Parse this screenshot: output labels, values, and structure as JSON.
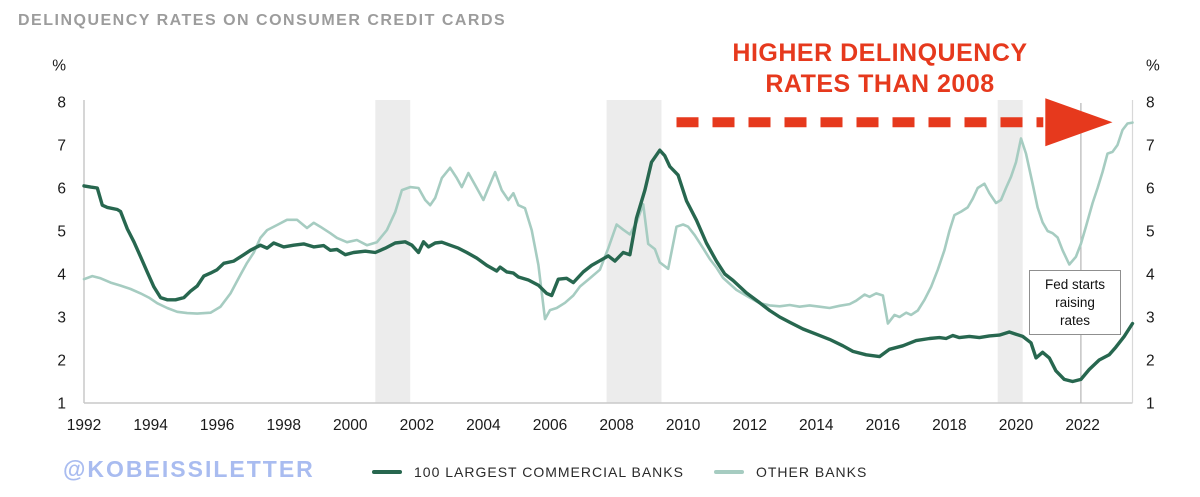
{
  "title": "DELINQUENCY RATES ON CONSUMER CREDIT CARDS",
  "watermark": "@KOBEISSILETTER",
  "colors": {
    "accent_red": "#e6391d",
    "watermark_blue": "#a9bcf0",
    "title_gray": "#9c9c9c",
    "recession_band": "#ececec",
    "axis_line": "#c9c9c9",
    "event_line": "#b5b5b5",
    "series_dark_green": "#27674f",
    "series_light_green": "#a6ccc1"
  },
  "annotations": {
    "headline": [
      "HIGHER DELINQUENCY",
      "RATES THAN 2008"
    ],
    "fed_label_lines": [
      "Fed starts",
      "raising",
      "rates"
    ]
  },
  "axis": {
    "unit": "%"
  },
  "legend": [
    {
      "label": "100 LARGEST COMMERCIAL BANKS",
      "color": "#27674f"
    },
    {
      "label": "OTHER BANKS",
      "color": "#a6ccc1"
    }
  ],
  "chart_data": {
    "type": "line",
    "title": "DELINQUENCY RATES ON CONSUMER CREDIT CARDS",
    "xlabel": "",
    "ylabel": "%",
    "xlim": [
      1992,
      2023.5
    ],
    "ylim": [
      1,
      8
    ],
    "x_ticks": [
      1992,
      1994,
      1996,
      1998,
      2000,
      2002,
      2004,
      2006,
      2008,
      2010,
      2012,
      2014,
      2016,
      2018,
      2020,
      2022
    ],
    "y_ticks": [
      1,
      2,
      3,
      4,
      5,
      6,
      7,
      8
    ],
    "grid": false,
    "legend_position": "bottom",
    "recession_bands": [
      [
        2000.75,
        2001.8
      ],
      [
        2007.7,
        2009.35
      ],
      [
        2019.45,
        2020.2
      ]
    ],
    "event_line": {
      "x": 2021.95,
      "label": "Fed starts raising rates"
    },
    "arrow_annotation": {
      "label": "HIGHER DELINQUENCY RATES THAN 2008",
      "y": 7.53,
      "x_start": 2009.8,
      "x_end": 2021.0,
      "tip_x": 2022.9,
      "color": "#e6391d"
    },
    "series": [
      {
        "name": "100 LARGEST COMMERCIAL BANKS",
        "color": "#27674f",
        "points": [
          [
            1992.0,
            6.05
          ],
          [
            1992.2,
            6.02
          ],
          [
            1992.4,
            6.0
          ],
          [
            1992.55,
            5.6
          ],
          [
            1992.7,
            5.55
          ],
          [
            1993.0,
            5.5
          ],
          [
            1993.1,
            5.45
          ],
          [
            1993.3,
            5.05
          ],
          [
            1993.5,
            4.75
          ],
          [
            1993.7,
            4.4
          ],
          [
            1993.9,
            4.05
          ],
          [
            1994.1,
            3.7
          ],
          [
            1994.3,
            3.45
          ],
          [
            1994.5,
            3.4
          ],
          [
            1994.75,
            3.4
          ],
          [
            1995.0,
            3.45
          ],
          [
            1995.2,
            3.6
          ],
          [
            1995.4,
            3.72
          ],
          [
            1995.6,
            3.95
          ],
          [
            1995.8,
            4.02
          ],
          [
            1996.0,
            4.1
          ],
          [
            1996.2,
            4.25
          ],
          [
            1996.5,
            4.3
          ],
          [
            1996.8,
            4.45
          ],
          [
            1997.0,
            4.55
          ],
          [
            1997.3,
            4.67
          ],
          [
            1997.5,
            4.6
          ],
          [
            1997.7,
            4.72
          ],
          [
            1998.0,
            4.63
          ],
          [
            1998.3,
            4.67
          ],
          [
            1998.6,
            4.7
          ],
          [
            1998.9,
            4.63
          ],
          [
            1999.2,
            4.66
          ],
          [
            1999.4,
            4.55
          ],
          [
            1999.6,
            4.57
          ],
          [
            1999.85,
            4.45
          ],
          [
            2000.1,
            4.5
          ],
          [
            2000.45,
            4.53
          ],
          [
            2000.75,
            4.5
          ],
          [
            2001.05,
            4.6
          ],
          [
            2001.35,
            4.72
          ],
          [
            2001.65,
            4.75
          ],
          [
            2001.85,
            4.67
          ],
          [
            2002.05,
            4.5
          ],
          [
            2002.2,
            4.75
          ],
          [
            2002.35,
            4.63
          ],
          [
            2002.55,
            4.72
          ],
          [
            2002.75,
            4.74
          ],
          [
            2003.0,
            4.67
          ],
          [
            2003.25,
            4.6
          ],
          [
            2003.5,
            4.5
          ],
          [
            2003.8,
            4.37
          ],
          [
            2004.1,
            4.2
          ],
          [
            2004.4,
            4.07
          ],
          [
            2004.5,
            4.16
          ],
          [
            2004.7,
            4.05
          ],
          [
            2004.9,
            4.02
          ],
          [
            2005.05,
            3.93
          ],
          [
            2005.35,
            3.86
          ],
          [
            2005.65,
            3.74
          ],
          [
            2005.9,
            3.55
          ],
          [
            2006.05,
            3.5
          ],
          [
            2006.25,
            3.88
          ],
          [
            2006.5,
            3.9
          ],
          [
            2006.7,
            3.8
          ],
          [
            2007.0,
            4.05
          ],
          [
            2007.25,
            4.2
          ],
          [
            2007.5,
            4.31
          ],
          [
            2007.75,
            4.42
          ],
          [
            2007.95,
            4.3
          ],
          [
            2008.2,
            4.5
          ],
          [
            2008.4,
            4.45
          ],
          [
            2008.6,
            5.3
          ],
          [
            2008.85,
            5.95
          ],
          [
            2009.05,
            6.6
          ],
          [
            2009.3,
            6.88
          ],
          [
            2009.45,
            6.75
          ],
          [
            2009.6,
            6.5
          ],
          [
            2009.85,
            6.3
          ],
          [
            2010.1,
            5.7
          ],
          [
            2010.4,
            5.25
          ],
          [
            2010.7,
            4.72
          ],
          [
            2011.0,
            4.3
          ],
          [
            2011.25,
            4.0
          ],
          [
            2011.5,
            3.85
          ],
          [
            2011.9,
            3.56
          ],
          [
            2012.3,
            3.33
          ],
          [
            2012.6,
            3.15
          ],
          [
            2012.9,
            3.0
          ],
          [
            2013.2,
            2.88
          ],
          [
            2013.6,
            2.72
          ],
          [
            2014.0,
            2.6
          ],
          [
            2014.4,
            2.48
          ],
          [
            2014.8,
            2.33
          ],
          [
            2015.1,
            2.2
          ],
          [
            2015.5,
            2.12
          ],
          [
            2015.9,
            2.08
          ],
          [
            2016.2,
            2.25
          ],
          [
            2016.6,
            2.33
          ],
          [
            2017.0,
            2.45
          ],
          [
            2017.4,
            2.5
          ],
          [
            2017.7,
            2.52
          ],
          [
            2017.9,
            2.5
          ],
          [
            2018.1,
            2.57
          ],
          [
            2018.3,
            2.52
          ],
          [
            2018.6,
            2.55
          ],
          [
            2018.9,
            2.52
          ],
          [
            2019.2,
            2.56
          ],
          [
            2019.5,
            2.58
          ],
          [
            2019.8,
            2.65
          ],
          [
            2020.0,
            2.6
          ],
          [
            2020.2,
            2.55
          ],
          [
            2020.45,
            2.4
          ],
          [
            2020.6,
            2.05
          ],
          [
            2020.8,
            2.18
          ],
          [
            2021.0,
            2.05
          ],
          [
            2021.2,
            1.75
          ],
          [
            2021.45,
            1.55
          ],
          [
            2021.7,
            1.5
          ],
          [
            2021.95,
            1.55
          ],
          [
            2022.2,
            1.78
          ],
          [
            2022.5,
            2.0
          ],
          [
            2022.8,
            2.12
          ],
          [
            2023.0,
            2.3
          ],
          [
            2023.25,
            2.55
          ],
          [
            2023.5,
            2.85
          ]
        ]
      },
      {
        "name": "OTHER BANKS",
        "color": "#a6ccc1",
        "points": [
          [
            1992.0,
            3.88
          ],
          [
            1992.25,
            3.95
          ],
          [
            1992.5,
            3.9
          ],
          [
            1992.8,
            3.8
          ],
          [
            1993.1,
            3.73
          ],
          [
            1993.4,
            3.65
          ],
          [
            1993.7,
            3.55
          ],
          [
            1993.95,
            3.45
          ],
          [
            1994.2,
            3.32
          ],
          [
            1994.5,
            3.21
          ],
          [
            1994.8,
            3.12
          ],
          [
            1995.1,
            3.09
          ],
          [
            1995.4,
            3.08
          ],
          [
            1995.8,
            3.1
          ],
          [
            1996.1,
            3.24
          ],
          [
            1996.4,
            3.55
          ],
          [
            1996.7,
            3.98
          ],
          [
            1996.9,
            4.26
          ],
          [
            1997.1,
            4.5
          ],
          [
            1997.3,
            4.84
          ],
          [
            1997.5,
            5.02
          ],
          [
            1997.8,
            5.14
          ],
          [
            1998.1,
            5.26
          ],
          [
            1998.4,
            5.26
          ],
          [
            1998.7,
            5.07
          ],
          [
            1998.9,
            5.19
          ],
          [
            1999.1,
            5.1
          ],
          [
            1999.4,
            4.95
          ],
          [
            1999.6,
            4.84
          ],
          [
            1999.9,
            4.74
          ],
          [
            2000.2,
            4.79
          ],
          [
            2000.5,
            4.67
          ],
          [
            2000.8,
            4.74
          ],
          [
            2001.1,
            5.02
          ],
          [
            2001.35,
            5.44
          ],
          [
            2001.55,
            5.95
          ],
          [
            2001.8,
            6.02
          ],
          [
            2002.05,
            6.0
          ],
          [
            2002.25,
            5.72
          ],
          [
            2002.4,
            5.6
          ],
          [
            2002.55,
            5.77
          ],
          [
            2002.75,
            6.23
          ],
          [
            2003.0,
            6.47
          ],
          [
            2003.2,
            6.23
          ],
          [
            2003.35,
            6.02
          ],
          [
            2003.55,
            6.35
          ],
          [
            2003.75,
            6.07
          ],
          [
            2004.0,
            5.72
          ],
          [
            2004.15,
            6.0
          ],
          [
            2004.35,
            6.37
          ],
          [
            2004.55,
            5.95
          ],
          [
            2004.75,
            5.72
          ],
          [
            2004.9,
            5.88
          ],
          [
            2005.05,
            5.6
          ],
          [
            2005.25,
            5.53
          ],
          [
            2005.45,
            5.02
          ],
          [
            2005.65,
            4.21
          ],
          [
            2005.85,
            2.95
          ],
          [
            2006.0,
            3.16
          ],
          [
            2006.2,
            3.21
          ],
          [
            2006.45,
            3.33
          ],
          [
            2006.7,
            3.5
          ],
          [
            2006.9,
            3.71
          ],
          [
            2007.2,
            3.9
          ],
          [
            2007.5,
            4.1
          ],
          [
            2007.75,
            4.6
          ],
          [
            2008.0,
            5.15
          ],
          [
            2008.2,
            5.03
          ],
          [
            2008.4,
            4.92
          ],
          [
            2008.6,
            5.2
          ],
          [
            2008.8,
            5.62
          ],
          [
            2008.95,
            4.7
          ],
          [
            2009.15,
            4.58
          ],
          [
            2009.3,
            4.27
          ],
          [
            2009.55,
            4.12
          ],
          [
            2009.8,
            5.1
          ],
          [
            2010.0,
            5.15
          ],
          [
            2010.15,
            5.1
          ],
          [
            2010.35,
            4.9
          ],
          [
            2010.6,
            4.6
          ],
          [
            2010.8,
            4.35
          ],
          [
            2011.0,
            4.15
          ],
          [
            2011.2,
            3.91
          ],
          [
            2011.6,
            3.63
          ],
          [
            2012.0,
            3.45
          ],
          [
            2012.3,
            3.32
          ],
          [
            2012.6,
            3.27
          ],
          [
            2012.9,
            3.25
          ],
          [
            2013.2,
            3.28
          ],
          [
            2013.5,
            3.24
          ],
          [
            2013.8,
            3.27
          ],
          [
            2014.1,
            3.24
          ],
          [
            2014.4,
            3.21
          ],
          [
            2014.7,
            3.26
          ],
          [
            2015.0,
            3.3
          ],
          [
            2015.2,
            3.38
          ],
          [
            2015.45,
            3.52
          ],
          [
            2015.6,
            3.47
          ],
          [
            2015.8,
            3.55
          ],
          [
            2016.0,
            3.5
          ],
          [
            2016.15,
            2.85
          ],
          [
            2016.35,
            3.05
          ],
          [
            2016.5,
            3.0
          ],
          [
            2016.7,
            3.1
          ],
          [
            2016.85,
            3.05
          ],
          [
            2017.05,
            3.15
          ],
          [
            2017.25,
            3.4
          ],
          [
            2017.45,
            3.7
          ],
          [
            2017.65,
            4.1
          ],
          [
            2017.85,
            4.55
          ],
          [
            2018.0,
            5.0
          ],
          [
            2018.15,
            5.37
          ],
          [
            2018.35,
            5.45
          ],
          [
            2018.55,
            5.55
          ],
          [
            2018.7,
            5.75
          ],
          [
            2018.85,
            6.0
          ],
          [
            2019.05,
            6.1
          ],
          [
            2019.2,
            5.88
          ],
          [
            2019.4,
            5.65
          ],
          [
            2019.55,
            5.72
          ],
          [
            2019.7,
            6.0
          ],
          [
            2019.85,
            6.26
          ],
          [
            2020.0,
            6.6
          ],
          [
            2020.15,
            7.15
          ],
          [
            2020.3,
            6.8
          ],
          [
            2020.5,
            6.1
          ],
          [
            2020.65,
            5.55
          ],
          [
            2020.8,
            5.2
          ],
          [
            2020.95,
            5.0
          ],
          [
            2021.1,
            4.95
          ],
          [
            2021.25,
            4.85
          ],
          [
            2021.4,
            4.55
          ],
          [
            2021.6,
            4.22
          ],
          [
            2021.8,
            4.4
          ],
          [
            2021.95,
            4.7
          ],
          [
            2022.1,
            5.1
          ],
          [
            2022.3,
            5.65
          ],
          [
            2022.45,
            6.0
          ],
          [
            2022.6,
            6.37
          ],
          [
            2022.75,
            6.8
          ],
          [
            2022.9,
            6.84
          ],
          [
            2023.05,
            7.0
          ],
          [
            2023.2,
            7.35
          ],
          [
            2023.35,
            7.5
          ],
          [
            2023.5,
            7.52
          ]
        ]
      }
    ]
  }
}
